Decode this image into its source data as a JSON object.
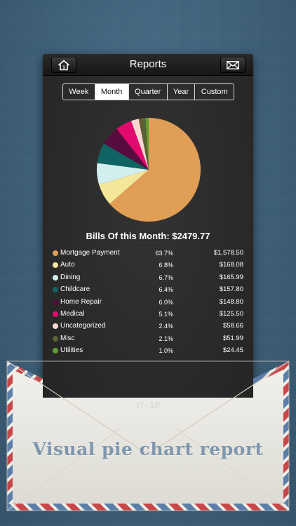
{
  "nav": {
    "title": "Reports"
  },
  "tabs": [
    {
      "label": "Week",
      "active": false
    },
    {
      "label": "Month",
      "active": true
    },
    {
      "label": "Quarter",
      "active": false
    },
    {
      "label": "Year",
      "active": false
    },
    {
      "label": "Custom",
      "active": false
    }
  ],
  "summary": {
    "label": "Bills Of this Month: $2479.77"
  },
  "chart_data": {
    "type": "pie",
    "categories": [
      "Mortgage Payment",
      "Auto",
      "Dining",
      "Childcare",
      "Home Repair",
      "Medical",
      "Uncategorized",
      "Misc",
      "Utilities"
    ],
    "values": [
      63.7,
      6.8,
      6.7,
      6.4,
      6.0,
      5.1,
      2.4,
      2.1,
      1.0
    ],
    "amounts": [
      "$1,578.50",
      "$168.08",
      "$165.99",
      "$157.80",
      "$148.80",
      "$125.50",
      "$58.66",
      "$51.99",
      "$24.45"
    ],
    "percent_labels": [
      "63.7%",
      "6.8%",
      "6.7%",
      "6.4%",
      "6.0%",
      "5.1%",
      "2.4%",
      "2.1%",
      "1.0%"
    ],
    "colors": [
      "#e09e57",
      "#f4e79a",
      "#d3eeee",
      "#0f6463",
      "#560c3c",
      "#e20a6e",
      "#fbd6d0",
      "#5d6033",
      "#5da12e"
    ]
  },
  "envelope": {
    "caption": "Visual pie chart report",
    "faint": "17 - 12/"
  },
  "icons": {
    "home": "home-icon",
    "mail": "envelope-icon"
  }
}
